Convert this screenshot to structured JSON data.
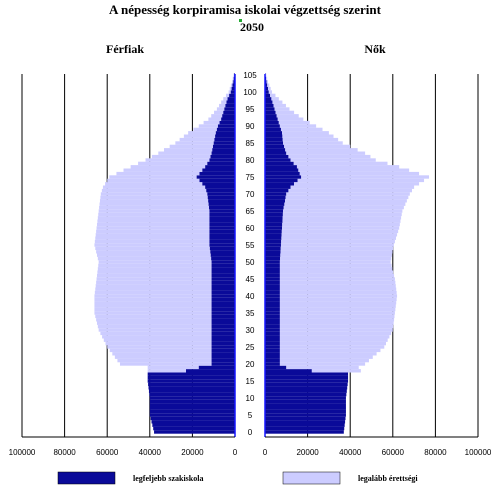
{
  "chart_data": {
    "type": "bar",
    "title": "A népesség korpiramisa iskolai végzettség szerint",
    "subtitle": "2050",
    "panels": {
      "left": "Férfiak",
      "right": "Nők"
    },
    "x_ticks_left": [
      "100000",
      "80000",
      "60000",
      "40000",
      "20000",
      "0"
    ],
    "x_ticks_right": [
      "0",
      "20000",
      "40000",
      "60000",
      "80000",
      "100000"
    ],
    "xlim": [
      0,
      100000
    ],
    "age_ticks": [
      "0",
      "5",
      "10",
      "15",
      "20",
      "25",
      "30",
      "35",
      "40",
      "45",
      "50",
      "55",
      "60",
      "65",
      "70",
      "75",
      "80",
      "85",
      "90",
      "95",
      "100",
      "105"
    ],
    "age_range": [
      0,
      105
    ],
    "legend": [
      {
        "label": "legfeljebb szakiskola",
        "color": "#0a0a99"
      },
      {
        "label": "legalább érettségi",
        "color": "#ccccff"
      }
    ],
    "bar_outline": "#1515ff",
    "series_men": {
      "ages": [
        0,
        5,
        10,
        15,
        17,
        18,
        19,
        20,
        25,
        30,
        35,
        40,
        45,
        50,
        55,
        60,
        65,
        70,
        72,
        75,
        78,
        80,
        82,
        85,
        88,
        90,
        92,
        95,
        98,
        100,
        103,
        105
      ],
      "legfeljebb_szakiskola": [
        38000,
        40000,
        40000,
        41000,
        41000,
        23000,
        17000,
        11000,
        11000,
        11000,
        11000,
        11000,
        11000,
        11000,
        12000,
        12000,
        12000,
        13000,
        14000,
        18000,
        14000,
        12000,
        11000,
        10000,
        9000,
        8000,
        6500,
        5000,
        3500,
        2000,
        800,
        400
      ],
      "legalabb_erettsegi": [
        0,
        0,
        0,
        0,
        0,
        18000,
        24000,
        43000,
        49000,
        53000,
        55000,
        55000,
        54000,
        53000,
        54000,
        53000,
        52000,
        50000,
        48000,
        41000,
        35000,
        30000,
        25000,
        18000,
        13000,
        9000,
        6000,
        3500,
        2000,
        1000,
        600,
        300
      ]
    },
    "series_women": {
      "ages": [
        0,
        5,
        10,
        15,
        17,
        18,
        19,
        20,
        25,
        30,
        35,
        40,
        45,
        50,
        55,
        60,
        65,
        70,
        72,
        75,
        78,
        80,
        82,
        85,
        88,
        90,
        92,
        95,
        98,
        100,
        103,
        105
      ],
      "legfeljebb_szakiskola": [
        37000,
        38000,
        38000,
        39000,
        39000,
        22000,
        10000,
        7000,
        7000,
        7000,
        7000,
        7000,
        7000,
        7000,
        7500,
        8000,
        8500,
        10000,
        12000,
        17000,
        15000,
        12000,
        10000,
        8500,
        8000,
        7000,
        6000,
        4500,
        3000,
        1800,
        700,
        300
      ],
      "legalabb_erettsegi": [
        0,
        0,
        0,
        0,
        0,
        23000,
        34000,
        40000,
        49000,
        53000,
        54000,
        55000,
        54000,
        52000,
        53000,
        55000,
        56000,
        58000,
        58000,
        60000,
        48000,
        40000,
        37000,
        28000,
        22000,
        17000,
        12000,
        7000,
        3500,
        1500,
        700,
        300
      ]
    }
  }
}
